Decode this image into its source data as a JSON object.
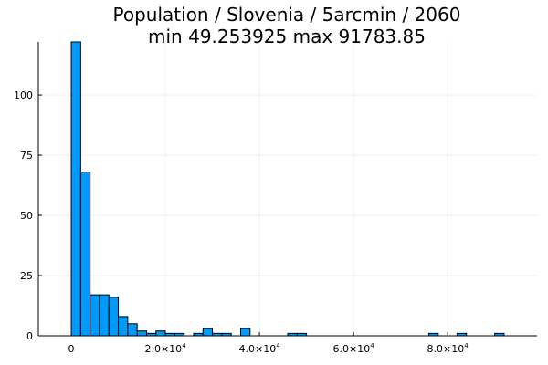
{
  "chart_data": {
    "type": "bar",
    "title": "Population / Slovenia / 5arcmin / 2060",
    "subtitle": "min 49.253925  max 91783.85",
    "xlabel": "",
    "ylabel": "",
    "bin_width": 2000,
    "bins": [
      {
        "x0": 0,
        "x1": 2000,
        "count": 122
      },
      {
        "x0": 2000,
        "x1": 4000,
        "count": 68
      },
      {
        "x0": 4000,
        "x1": 6000,
        "count": 17
      },
      {
        "x0": 6000,
        "x1": 8000,
        "count": 17
      },
      {
        "x0": 8000,
        "x1": 10000,
        "count": 16
      },
      {
        "x0": 10000,
        "x1": 12000,
        "count": 8
      },
      {
        "x0": 12000,
        "x1": 14000,
        "count": 5
      },
      {
        "x0": 14000,
        "x1": 16000,
        "count": 2
      },
      {
        "x0": 16000,
        "x1": 18000,
        "count": 1
      },
      {
        "x0": 18000,
        "x1": 20000,
        "count": 2
      },
      {
        "x0": 20000,
        "x1": 22000,
        "count": 1
      },
      {
        "x0": 22000,
        "x1": 24000,
        "count": 1
      },
      {
        "x0": 26000,
        "x1": 28000,
        "count": 1
      },
      {
        "x0": 28000,
        "x1": 30000,
        "count": 3
      },
      {
        "x0": 30000,
        "x1": 32000,
        "count": 1
      },
      {
        "x0": 32000,
        "x1": 34000,
        "count": 1
      },
      {
        "x0": 36000,
        "x1": 38000,
        "count": 3
      },
      {
        "x0": 46000,
        "x1": 48000,
        "count": 1
      },
      {
        "x0": 48000,
        "x1": 50000,
        "count": 1
      },
      {
        "x0": 76000,
        "x1": 78000,
        "count": 1
      },
      {
        "x0": 82000,
        "x1": 84000,
        "count": 1
      },
      {
        "x0": 90000,
        "x1": 92000,
        "count": 1
      }
    ],
    "xlim": [
      -7000,
      99000
    ],
    "ylim": [
      0,
      122
    ],
    "x_ticks": [
      {
        "value": 0,
        "label": "0",
        "sup": ""
      },
      {
        "value": 20000,
        "label": "2.0×10",
        "sup": "4"
      },
      {
        "value": 40000,
        "label": "4.0×10",
        "sup": "4"
      },
      {
        "value": 60000,
        "label": "6.0×10",
        "sup": "4"
      },
      {
        "value": 80000,
        "label": "8.0×10",
        "sup": "4"
      }
    ],
    "y_ticks": [
      {
        "value": 0,
        "label": "0"
      },
      {
        "value": 25,
        "label": "25"
      },
      {
        "value": 50,
        "label": "50"
      },
      {
        "value": 75,
        "label": "75"
      },
      {
        "value": 100,
        "label": "100"
      }
    ],
    "grid": true,
    "legend": "none",
    "bar_color": "#009AFA",
    "edge_color": "#000000"
  }
}
